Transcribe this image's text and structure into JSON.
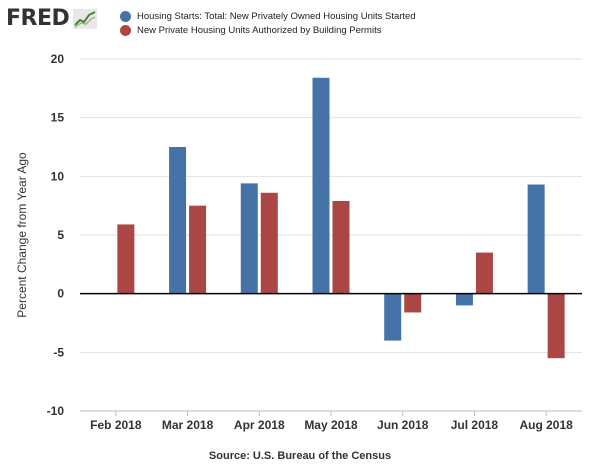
{
  "logo": {
    "text": "FRED",
    "icon": "trend-line-graph-icon"
  },
  "chart_data": {
    "type": "bar",
    "title": "",
    "xlabel": "",
    "ylabel": "Percent Change from Year Ago",
    "categories": [
      "Feb 2018",
      "Mar 2018",
      "Apr 2018",
      "May 2018",
      "Jun 2018",
      "Jul 2018",
      "Aug 2018"
    ],
    "ylim": [
      -10,
      20
    ],
    "yticks": [
      20,
      15,
      10,
      5,
      0,
      -5,
      -10
    ],
    "ytick_labels": [
      "20",
      "15",
      "10",
      "5",
      "0",
      "-5",
      "-10"
    ],
    "grid": true,
    "legend_position": "top",
    "series": [
      {
        "name": "Housing Starts: Total: New Privately Owned Housing Units Started",
        "color": "#4572a7",
        "values": [
          null,
          12.5,
          9.4,
          18.4,
          -4.0,
          -1.0,
          9.3
        ]
      },
      {
        "name": "New Private Housing Units Authorized by Building Permits",
        "color": "#aa4643",
        "values": [
          5.9,
          7.5,
          8.6,
          7.9,
          -1.6,
          3.5,
          -5.5
        ]
      }
    ],
    "source": "Source: U.S. Bureau of the Census"
  }
}
